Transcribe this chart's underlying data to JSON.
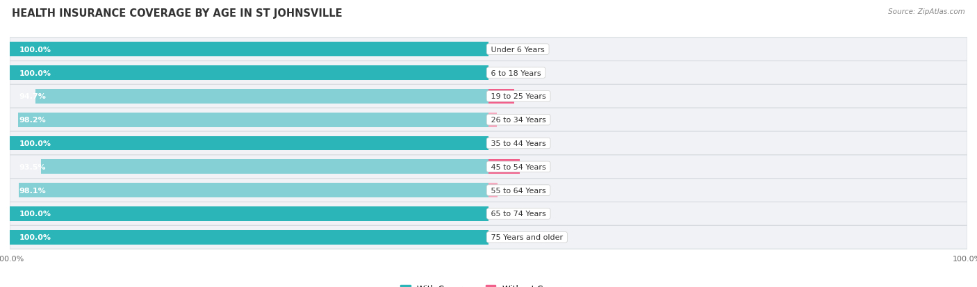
{
  "title": "HEALTH INSURANCE COVERAGE BY AGE IN ST JOHNSVILLE",
  "source": "Source: ZipAtlas.com",
  "categories": [
    "Under 6 Years",
    "6 to 18 Years",
    "19 to 25 Years",
    "26 to 34 Years",
    "35 to 44 Years",
    "45 to 54 Years",
    "55 to 64 Years",
    "65 to 74 Years",
    "75 Years and older"
  ],
  "with_coverage": [
    100.0,
    100.0,
    94.7,
    98.2,
    100.0,
    93.5,
    98.1,
    100.0,
    100.0
  ],
  "without_coverage": [
    0.0,
    0.0,
    5.3,
    1.8,
    0.0,
    6.6,
    1.9,
    0.0,
    0.0
  ],
  "color_with_dark": "#2bb5b8",
  "color_with_light": "#85d0d5",
  "color_without_strong": "#f0608a",
  "color_without_light": "#f5aac0",
  "row_bg": "#f0f2f5",
  "background_color": "#ffffff",
  "title_fontsize": 10.5,
  "label_fontsize": 8.0,
  "cat_fontsize": 8.0,
  "tick_fontsize": 8.0,
  "legend_fontsize": 8.5,
  "source_fontsize": 7.5
}
